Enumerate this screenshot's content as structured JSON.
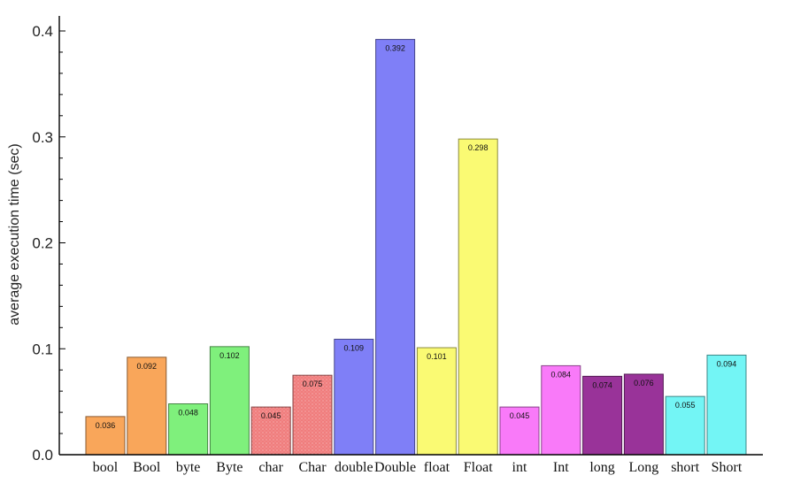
{
  "chart_data": {
    "type": "bar",
    "title": "",
    "xlabel": "",
    "ylabel": "average execution time (sec)",
    "ylim": [
      0,
      0.41
    ],
    "yticks": [
      {
        "value": 0.0,
        "label": "0.0"
      },
      {
        "value": 0.1,
        "label": "0.1"
      },
      {
        "value": 0.2,
        "label": "0.2"
      },
      {
        "value": 0.3,
        "label": "0.3"
      },
      {
        "value": 0.4,
        "label": "0.4"
      }
    ],
    "grid": false,
    "legend": "none",
    "categories": [
      "bool",
      "Bool",
      "byte",
      "Byte",
      "char",
      "Char",
      "double",
      "Double",
      "float",
      "Float",
      "int",
      "Int",
      "long",
      "Long",
      "short",
      "Short"
    ],
    "values": [
      0.036,
      0.092,
      0.048,
      0.102,
      0.045,
      0.075,
      0.109,
      0.392,
      0.101,
      0.298,
      0.045,
      0.084,
      0.074,
      0.076,
      0.055,
      0.094
    ],
    "data_labels": [
      "0.036",
      "0.092",
      "0.048",
      "0.102",
      "0.045",
      "0.075",
      "0.109",
      "0.392",
      "0.101",
      "0.298",
      "0.045",
      "0.084",
      "0.074",
      "0.076",
      "0.055",
      "0.094"
    ],
    "colors": [
      "#f9a65a",
      "#f9a65a",
      "#7ff07c",
      "#7ff07c",
      "#f07d7d",
      "#f07d7d",
      "#7f7ff7",
      "#7f7ff7",
      "#fafa73",
      "#fafa73",
      "#f97af9",
      "#f97af9",
      "#993399",
      "#993399",
      "#73f5f5",
      "#73f5f5"
    ]
  }
}
